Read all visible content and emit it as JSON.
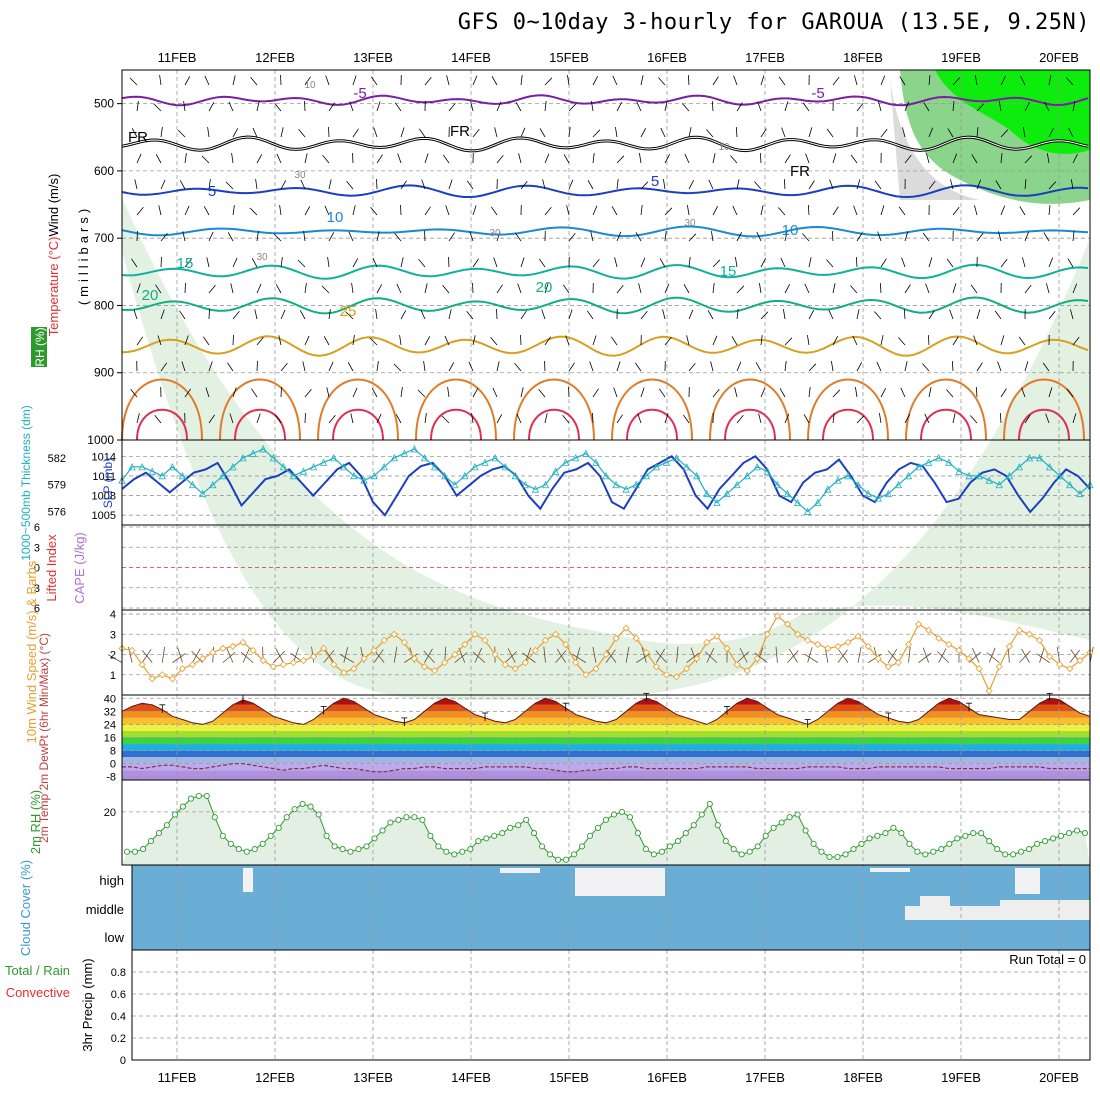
{
  "title": "GFS 0~10day 3-hourly for GAROUA (13.5E, 9.25N)",
  "colors": {
    "temperature_label": "#e07b2a",
    "wind_label": "#000000",
    "rh_green": "#2e9a2e",
    "thickness": "#20b0c0",
    "slp": "#1c3fbf",
    "lifted_index": "#e03030",
    "cape": "#b070d0",
    "wind10m": "#e8a030",
    "cloud": "#6aaed6",
    "precip_total": "#2e9a2e",
    "precip_conv": "#e03030"
  },
  "chart_data": [
    {
      "panel": "upper-air",
      "type": "heatmap",
      "title": "",
      "x_dates": [
        "11FEB",
        "12FEB",
        "13FEB",
        "14FEB",
        "15FEB",
        "16FEB",
        "17FEB",
        "18FEB",
        "19FEB",
        "20FEB"
      ],
      "ylabel_parts": [
        "RH (%)",
        "Temperature (°C)",
        "Wind (m/s)",
        "(millibars)"
      ],
      "y_ticks": [
        500,
        600,
        700,
        800,
        900,
        1000
      ],
      "ylim": [
        450,
        1000
      ],
      "contour_labels": [
        {
          "text": "-5",
          "color": "#7a1fa0"
        },
        {
          "text": "-5",
          "color": "#7a1fa0"
        },
        {
          "text": "FR",
          "color": "#000000"
        },
        {
          "text": "FR",
          "color": "#000000"
        },
        {
          "text": "FR",
          "color": "#000000"
        },
        {
          "text": "5",
          "color": "#1c3fbf"
        },
        {
          "text": "5",
          "color": "#1c3fbf"
        },
        {
          "text": "10",
          "color": "#1a8ad0"
        },
        {
          "text": "10",
          "color": "#1a8ad0"
        },
        {
          "text": "15",
          "color": "#10b0a0"
        },
        {
          "text": "15",
          "color": "#10b0a0"
        },
        {
          "text": "20",
          "color": "#10b080"
        },
        {
          "text": "20",
          "color": "#10b080"
        },
        {
          "text": "25",
          "color": "#d8a020"
        },
        {
          "text": "10",
          "color": "#888888"
        },
        {
          "text": "10",
          "color": "#888888"
        },
        {
          "text": "30",
          "color": "#888888"
        },
        {
          "text": "30",
          "color": "#888888"
        },
        {
          "text": "30",
          "color": "#888888"
        },
        {
          "text": "30",
          "color": "#888888"
        }
      ]
    },
    {
      "panel": "thickness-slp",
      "type": "line",
      "ylabel_left": "1000~500mb Thickness (dm)",
      "ylabel_right": "SLP (mb)",
      "left_ticks": [
        576,
        579,
        582
      ],
      "right_ticks": [
        1005,
        1008,
        1011,
        1014
      ],
      "series": [
        {
          "name": "SLP (mb)",
          "values": [
            1009,
            1010.5,
            1011.5,
            1010,
            1008.5,
            1010,
            1011.5,
            1012,
            1013,
            1010,
            1006.5,
            1008.5,
            1010.5,
            1011,
            1012,
            1010,
            1008,
            1010,
            1012,
            1013,
            1011,
            1007,
            1005,
            1008,
            1011,
            1012.5,
            1013,
            1011,
            1008,
            1009.5,
            1011,
            1012,
            1012.5,
            1011,
            1008,
            1006,
            1009,
            1011.5,
            1012,
            1013,
            1011,
            1007,
            1006,
            1009,
            1012,
            1013,
            1014,
            1012,
            1008,
            1006,
            1009,
            1011,
            1013,
            1014,
            1012,
            1008,
            1007,
            1010,
            1011.5,
            1012,
            1013.5,
            1011,
            1008,
            1007,
            1010,
            1012,
            1013,
            1012.5,
            1010,
            1007,
            1007.5,
            1010,
            1011.5,
            1012,
            1011,
            1008,
            1005.5,
            1007.5,
            1010,
            1012,
            1011,
            1009
          ]
        },
        {
          "name": "1000~500mb Thickness (dm)",
          "values": [
            579.5,
            581,
            581,
            580.5,
            580,
            581,
            580,
            579,
            578,
            579,
            580,
            581,
            582,
            582.5,
            583,
            582,
            581,
            580,
            580.5,
            581,
            581.5,
            582,
            581,
            580,
            579.5,
            580,
            581,
            582,
            582.5,
            583,
            582,
            581,
            580,
            579,
            580,
            581,
            581.5,
            582,
            581,
            580,
            579,
            578.5,
            579,
            580.5,
            581.5,
            582,
            582.5,
            581.5,
            580,
            579,
            578.5,
            579,
            580,
            581,
            581.5,
            582,
            581,
            580,
            578,
            577,
            578,
            579,
            580,
            581,
            580.5,
            579,
            578,
            577,
            576,
            577,
            578.5,
            579.5,
            580,
            579,
            578,
            577.5,
            578,
            579,
            580,
            581,
            581.5,
            582,
            581.5,
            580.5,
            580,
            580,
            579.5,
            579,
            580,
            581,
            582,
            582,
            581,
            580,
            579,
            578,
            579
          ]
        }
      ]
    },
    {
      "panel": "lifted-index-cape",
      "type": "line",
      "ylabel_left": "Lifted Index",
      "ylabel_right": "CAPE (J/kg)",
      "left_ticks": [
        -6,
        -3,
        0,
        3,
        6
      ],
      "series": [
        {
          "name": "Lifted Index",
          "values": []
        }
      ]
    },
    {
      "panel": "wind10m",
      "type": "line",
      "ylabel": "10m Wind Speed (m/s) & Barbs",
      "y_ticks": [
        1,
        2,
        3,
        4
      ],
      "ylim": [
        0,
        4
      ],
      "series": [
        {
          "name": "10m Wind Speed",
          "values": [
            2.3,
            2.2,
            1.5,
            0.8,
            1.0,
            0.8,
            1.3,
            1.5,
            1.8,
            2.1,
            2.3,
            2.4,
            2.6,
            2.2,
            1.7,
            1.4,
            1.5,
            1.6,
            1.7,
            1.9,
            2.3,
            1.5,
            1.1,
            1.3,
            1.8,
            2.2,
            2.7,
            3.0,
            2.6,
            1.8,
            1.4,
            1.2,
            1.6,
            2.0,
            2.5,
            3.0,
            2.7,
            2.0,
            1.5,
            1.3,
            1.6,
            2.2,
            2.7,
            3.0,
            2.5,
            1.6,
            1.0,
            1.3,
            2.0,
            2.8,
            3.3,
            2.8,
            2.1,
            1.4,
            1.0,
            0.9,
            1.3,
            1.8,
            2.6,
            2.9,
            2.3,
            1.5,
            1.2,
            1.8,
            3.0,
            3.9,
            3.5,
            3.0,
            2.7,
            2.5,
            2.3,
            2.4,
            2.6,
            2.9,
            2.4,
            1.8,
            1.4,
            1.6,
            2.5,
            3.5,
            3.2,
            2.8,
            2.5,
            2.2,
            1.8,
            1.3,
            0.2,
            1.4,
            2.4,
            3.2,
            3.0,
            2.7,
            1.9,
            1.5,
            1.3,
            1.7,
            2.1
          ]
        }
      ]
    },
    {
      "panel": "temperature",
      "type": "area",
      "ylabel": "2m Temp 2m DewPt (6hr Min/Max) (°C)",
      "y_ticks": [
        -8,
        0,
        8,
        16,
        24,
        32,
        40
      ],
      "ylim": [
        -10,
        42
      ],
      "series": [
        {
          "name": "2m Temp",
          "values": [
            32,
            35,
            37,
            36,
            33,
            29,
            27,
            25,
            24,
            26,
            31,
            36,
            39,
            37,
            33,
            29,
            27,
            25,
            24,
            27,
            32,
            37,
            40,
            38,
            34,
            30,
            28,
            26,
            25,
            27,
            32,
            37,
            40,
            38,
            34,
            30,
            28,
            26,
            25,
            27,
            32,
            37,
            40,
            38,
            34,
            30,
            28,
            26,
            25,
            27,
            32,
            37,
            40,
            38,
            34,
            30,
            28,
            26,
            24,
            27,
            32,
            37,
            40,
            38,
            34,
            30,
            28,
            26,
            24,
            27,
            32,
            37,
            40,
            38,
            34,
            30,
            28,
            26,
            25,
            27,
            32,
            37,
            40,
            38,
            34,
            30,
            29,
            28,
            27,
            27,
            32,
            37,
            40,
            39,
            35,
            31,
            29
          ]
        },
        {
          "name": "2m DewPt",
          "values": [
            -2,
            -2,
            -3,
            -2,
            -1,
            -1,
            -2,
            -3,
            -3,
            -2,
            -1,
            0,
            0,
            -1,
            -2,
            -3,
            -4,
            -3,
            -3,
            -2,
            -1,
            -2,
            -3,
            -3,
            -4,
            -5,
            -5,
            -4,
            -3,
            -3,
            -2,
            -2,
            -3,
            -3,
            -3,
            -3,
            -2,
            -2,
            -2,
            -2,
            -2,
            -3,
            -3,
            -4,
            -5,
            -5,
            -4,
            -4,
            -3,
            -3,
            -2,
            -2,
            -3,
            -3,
            -3,
            -3,
            -3,
            -3,
            -2,
            -2,
            -2,
            -2,
            -2,
            -3,
            -3,
            -3,
            -3,
            -3,
            -2,
            -2,
            -2,
            -2,
            -3,
            -3,
            -3,
            -2,
            -2,
            -2,
            -2,
            -2,
            -2,
            -2,
            -3,
            -3,
            -3,
            -3,
            -3,
            -2,
            -2,
            -2,
            -2,
            -2,
            -3,
            -3,
            -3,
            -3,
            -3
          ]
        }
      ]
    },
    {
      "panel": "rh2m",
      "type": "area",
      "ylabel": "2m RH (%)",
      "y_ticks": [
        20
      ],
      "ylim": [
        0,
        30
      ],
      "series": [
        {
          "name": "2m RH",
          "values": [
            5,
            5,
            6,
            9,
            12,
            15,
            19,
            22,
            25,
            26,
            26,
            18,
            11,
            8,
            6,
            5,
            6,
            8,
            11,
            14,
            18,
            21,
            23,
            22,
            19,
            11,
            7,
            6,
            5,
            6,
            7,
            10,
            13,
            16,
            17,
            18,
            18,
            17,
            11,
            7,
            5,
            4,
            5,
            6,
            9,
            10,
            11,
            12,
            14,
            15,
            17,
            12,
            7,
            4,
            2,
            2,
            4,
            7,
            11,
            14,
            17,
            19,
            20,
            18,
            12,
            6,
            4,
            5,
            7,
            9,
            12,
            15,
            19,
            23,
            15,
            9,
            6,
            4,
            5,
            7,
            11,
            14,
            16,
            18,
            19,
            13,
            8,
            5,
            3,
            3,
            4,
            6,
            8,
            10,
            11,
            12,
            14,
            12,
            8,
            5,
            4,
            5,
            6,
            8,
            10,
            11,
            12,
            12,
            9,
            6,
            4,
            4,
            5,
            6,
            8,
            9,
            10,
            11,
            12,
            13,
            12
          ]
        }
      ]
    },
    {
      "panel": "cloud-cover",
      "type": "bar",
      "ylabel": "Cloud Cover (%)",
      "y_categories": [
        "high",
        "middle",
        "low"
      ]
    },
    {
      "panel": "precip",
      "type": "bar",
      "ylabel_parts": [
        "Total / Rain",
        "Convective",
        "3hr Precip (mm)"
      ],
      "y_ticks": [
        0,
        0.2,
        0.4,
        0.6,
        0.8
      ],
      "ylim": [
        0,
        1.0
      ],
      "annotation": "Run Total = 0",
      "series": [
        {
          "name": "3hr Precip",
          "values": []
        }
      ]
    }
  ]
}
